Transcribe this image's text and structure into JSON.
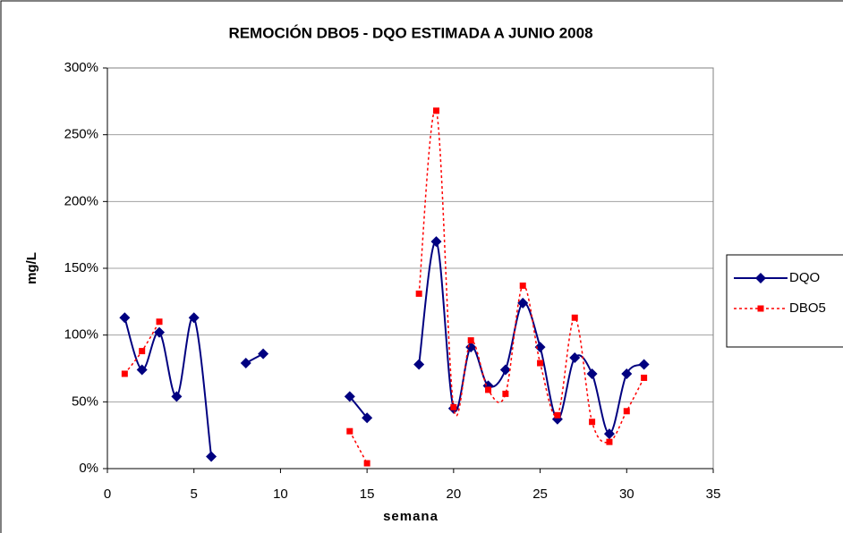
{
  "chart_data": {
    "type": "line",
    "title": "REMOCIÓN DBO5 - DQO ESTIMADA A JUNIO 2008",
    "x_label": "semana",
    "y_label": "mg/L",
    "x": [
      1,
      2,
      3,
      4,
      5,
      6,
      7,
      8,
      9,
      10,
      11,
      12,
      13,
      14,
      15,
      16,
      17,
      18,
      19,
      20,
      21,
      22,
      23,
      24,
      25,
      26,
      27,
      28,
      29,
      30,
      31
    ],
    "series": [
      {
        "name": "DQO",
        "color": "#000080",
        "marker": "diamond",
        "dash": "solid",
        "values": [
          113,
          74,
          102,
          54,
          113,
          9,
          null,
          79,
          86,
          null,
          null,
          null,
          null,
          54,
          38,
          null,
          null,
          78,
          170,
          45,
          91,
          62,
          74,
          124,
          91,
          37,
          83,
          71,
          26,
          71,
          78
        ]
      },
      {
        "name": "DBO5",
        "color": "#ff0000",
        "marker": "square",
        "dash": "dotted",
        "values": [
          71,
          88,
          110,
          null,
          null,
          null,
          null,
          null,
          null,
          null,
          null,
          null,
          null,
          28,
          4,
          null,
          null,
          131,
          268,
          46,
          96,
          59,
          56,
          137,
          79,
          40,
          113,
          35,
          20,
          43,
          68
        ]
      }
    ],
    "xlim": [
      0,
      35
    ],
    "xticks": [
      0,
      5,
      10,
      15,
      20,
      25,
      30,
      35
    ],
    "ylim": [
      0,
      300
    ],
    "yticks": [
      {
        "value": 0,
        "label": "0%"
      },
      {
        "value": 50,
        "label": "50%"
      },
      {
        "value": 100,
        "label": "100%"
      },
      {
        "value": 150,
        "label": "150%"
      },
      {
        "value": 200,
        "label": "200%"
      },
      {
        "value": 250,
        "label": "250%"
      },
      {
        "value": 300,
        "label": "300%"
      }
    ],
    "grid": true,
    "legend": "right"
  }
}
